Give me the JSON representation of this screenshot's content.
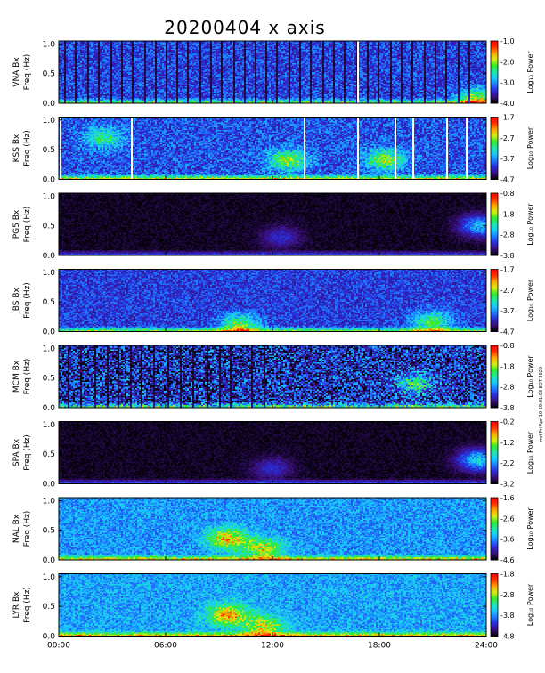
{
  "chart_data": {
    "type": "heatmap",
    "title": "20200404  x axis",
    "stamp": "mrl Fri Apr 10 19:01:03 EDT 2020",
    "colorbar_label": "Log₁₀ Power",
    "xlim_hours": [
      0,
      24
    ],
    "x_tick_hours": [
      0,
      6,
      12,
      18,
      24
    ],
    "x_tick_labels": [
      "00:00",
      "06:00",
      "12:00",
      "18:00",
      "24:00"
    ],
    "ylim_hz": [
      0,
      1.05
    ],
    "y_tick_values": [
      0.0,
      0.5,
      1.0
    ],
    "y_tick_labels": [
      "0.0",
      "0.5",
      "1.0"
    ],
    "colormap": [
      "#000000",
      "#3a0f7a",
      "#2a2ad8",
      "#1e78ff",
      "#18c8ff",
      "#20e6b0",
      "#30e830",
      "#d8ef10",
      "#ffa800",
      "#ff3000",
      "#ff0000"
    ],
    "panels": [
      {
        "station": "VNA",
        "ylabel_line1": "VNA Bx",
        "ylabel_line2": "Freq (Hz)",
        "cbar_ticks": [
          -1.0,
          -2.0,
          -3.0,
          -4.0
        ],
        "cbar_labels": [
          "-1.0",
          "-2.0",
          "-3.0",
          "-4.0"
        ],
        "base_level": 0.23,
        "noise": 0.12,
        "low_freq_band": 0.45,
        "dark_streaks_hours": [
          0.3,
          0.9,
          1.6,
          2.2,
          2.9,
          3.5,
          4.1,
          4.8,
          5.4,
          6.0,
          6.6,
          7.2,
          7.9,
          8.5,
          9.1,
          9.8,
          10.4,
          11.0,
          11.6,
          12.3,
          13.0,
          13.6,
          14.2,
          14.9,
          15.5,
          16.1,
          16.8,
          17.4,
          18.0,
          18.7,
          19.3,
          19.9,
          20.6,
          21.2,
          21.8,
          22.5,
          23.1
        ],
        "gap_hours": [
          16.8
        ],
        "features": [
          {
            "hour": 23.5,
            "freq": 0.05,
            "level": 0.55
          }
        ]
      },
      {
        "station": "KSS",
        "ylabel_line1": "KSS Bx",
        "ylabel_line2": "Freq (Hz)",
        "cbar_ticks": [
          -1.7,
          -2.7,
          -3.7,
          -4.7
        ],
        "cbar_labels": [
          "-1.7",
          "-2.7",
          "-3.7",
          "-4.7"
        ],
        "base_level": 0.25,
        "noise": 0.12,
        "low_freq_band": 0.55,
        "dark_streaks_hours": [],
        "gap_hours": [
          0.1,
          4.1,
          13.8,
          16.8,
          18.9,
          19.9,
          21.8,
          22.9
        ],
        "features": [
          {
            "hour": 12.9,
            "freq": 0.32,
            "level": 0.5
          },
          {
            "hour": 18.4,
            "freq": 0.33,
            "level": 0.5
          },
          {
            "hour": 2.5,
            "freq": 0.7,
            "level": 0.35
          }
        ]
      },
      {
        "station": "PG5",
        "ylabel_line1": "PG5 Bx",
        "ylabel_line2": "Freq (Hz)",
        "cbar_ticks": [
          -0.8,
          -1.8,
          -2.8,
          -3.8
        ],
        "cbar_labels": [
          "-0.8",
          "-1.8",
          "-2.8",
          "-3.8"
        ],
        "base_level": 0.03,
        "noise": 0.03,
        "low_freq_band": 0.25,
        "dark_streaks_hours": [],
        "gap_hours": [],
        "features": [
          {
            "hour": 12.5,
            "freq": 0.3,
            "level": 0.2
          },
          {
            "hour": 23.7,
            "freq": 0.5,
            "level": 0.45
          }
        ]
      },
      {
        "station": "JBS",
        "ylabel_line1": "JBS Bx",
        "ylabel_line2": "Freq (Hz)",
        "cbar_ticks": [
          -1.7,
          -2.7,
          -3.7,
          -4.7
        ],
        "cbar_labels": [
          "-1.7",
          "-2.7",
          "-3.7",
          "-4.7"
        ],
        "base_level": 0.22,
        "noise": 0.1,
        "low_freq_band": 0.5,
        "dark_streaks_hours": [],
        "gap_hours": [],
        "features": [
          {
            "hour": 10.2,
            "freq": 0.1,
            "level": 0.5
          },
          {
            "hour": 21.0,
            "freq": 0.15,
            "level": 0.45
          }
        ]
      },
      {
        "station": "MCM",
        "ylabel_line1": "MCM Bx",
        "ylabel_line2": "Freq (Hz)",
        "cbar_ticks": [
          -0.8,
          -1.8,
          -2.8,
          -3.8
        ],
        "cbar_labels": [
          "-0.8",
          "-1.8",
          "-2.8",
          "-3.8"
        ],
        "base_level": 0.18,
        "noise": 0.22,
        "low_freq_band": 0.5,
        "dark_streaks_hours": [
          0.5,
          1.2,
          2.0,
          2.7,
          3.3,
          4.0,
          4.6,
          5.3,
          6.1,
          6.8,
          7.5,
          8.3,
          9.0,
          9.6,
          10.8,
          11.5
        ],
        "gap_hours": [],
        "features": [
          {
            "hour": 20.0,
            "freq": 0.4,
            "level": 0.45
          }
        ]
      },
      {
        "station": "SPA",
        "ylabel_line1": "SPA Bx",
        "ylabel_line2": "Freq (Hz)",
        "cbar_ticks": [
          -0.2,
          -1.2,
          -2.2,
          -3.2
        ],
        "cbar_labels": [
          "-0.2",
          "-1.2",
          "-2.2",
          "-3.2"
        ],
        "base_level": 0.03,
        "noise": 0.03,
        "low_freq_band": 0.25,
        "dark_streaks_hours": [],
        "gap_hours": [],
        "features": [
          {
            "hour": 12.0,
            "freq": 0.25,
            "level": 0.2
          },
          {
            "hour": 23.6,
            "freq": 0.4,
            "level": 0.5
          }
        ]
      },
      {
        "station": "NAL",
        "ylabel_line1": "NAL Bx",
        "ylabel_line2": "Freq (Hz)",
        "cbar_ticks": [
          -1.6,
          -2.6,
          -3.6,
          -4.6
        ],
        "cbar_labels": [
          "-1.6",
          "-2.6",
          "-3.6",
          "-4.6"
        ],
        "base_level": 0.34,
        "noise": 0.1,
        "low_freq_band": 0.5,
        "dark_streaks_hours": [],
        "gap_hours": [],
        "features": [
          {
            "hour": 9.5,
            "freq": 0.35,
            "level": 0.55
          },
          {
            "hour": 11.5,
            "freq": 0.18,
            "level": 0.45
          }
        ]
      },
      {
        "station": "LYR",
        "ylabel_line1": "LYR Bx",
        "ylabel_line2": "Freq (Hz)",
        "cbar_ticks": [
          -1.8,
          -2.8,
          -3.8,
          -4.8
        ],
        "cbar_labels": [
          "-1.8",
          "-2.8",
          "-3.8",
          "-4.8"
        ],
        "base_level": 0.36,
        "noise": 0.1,
        "low_freq_band": 0.5,
        "dark_streaks_hours": [],
        "gap_hours": [],
        "features": [
          {
            "hour": 9.5,
            "freq": 0.35,
            "level": 0.55
          },
          {
            "hour": 11.5,
            "freq": 0.15,
            "level": 0.45
          }
        ]
      }
    ]
  }
}
